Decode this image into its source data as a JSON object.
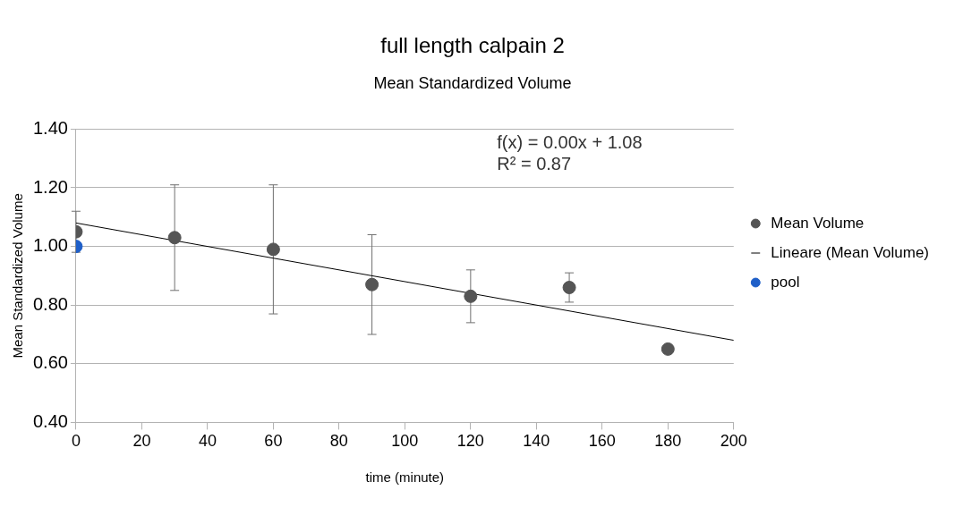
{
  "chart_data": {
    "type": "scatter",
    "title": "full length calpain 2",
    "subtitle": "Mean Standardized Volume",
    "xlabel": "time (minute)",
    "ylabel": "Mean Standardized Volume",
    "annotations": [
      "f(x) = 0.00x + 1.08",
      "R² = 0.87"
    ],
    "series": [
      {
        "name": "Mean Volume",
        "type": "scatter",
        "color": "#555555",
        "x": [
          0,
          30,
          60,
          90,
          120,
          150,
          180
        ],
        "values": [
          1.05,
          1.03,
          0.99,
          0.87,
          0.83,
          0.86,
          0.65
        ],
        "errors": [
          0.07,
          0.18,
          0.22,
          0.17,
          0.09,
          0.05,
          null
        ]
      },
      {
        "name": "Lineare (Mean Volume)",
        "type": "line",
        "marker": "none",
        "color": "#000000",
        "x": [
          0,
          200
        ],
        "values": [
          1.08,
          0.68
        ]
      },
      {
        "name": "pool",
        "type": "scatter",
        "color": "#1f5fc8",
        "x": [
          0
        ],
        "values": [
          1.0
        ]
      }
    ],
    "xlim": [
      0,
      200
    ],
    "xticks": [
      0,
      20,
      40,
      60,
      80,
      100,
      120,
      140,
      160,
      180,
      200
    ],
    "ylim": [
      0.4,
      1.4
    ],
    "yticks": [
      {
        "value": 0.4,
        "label": "0.40"
      },
      {
        "value": 0.6,
        "label": "0.60"
      },
      {
        "value": 0.8,
        "label": "0.80"
      },
      {
        "value": 1.0,
        "label": "1.00"
      },
      {
        "value": 1.2,
        "label": "1.20"
      },
      {
        "value": 1.4,
        "label": "1.40"
      }
    ],
    "grid": "y",
    "legend": "right",
    "marker": "circle"
  }
}
